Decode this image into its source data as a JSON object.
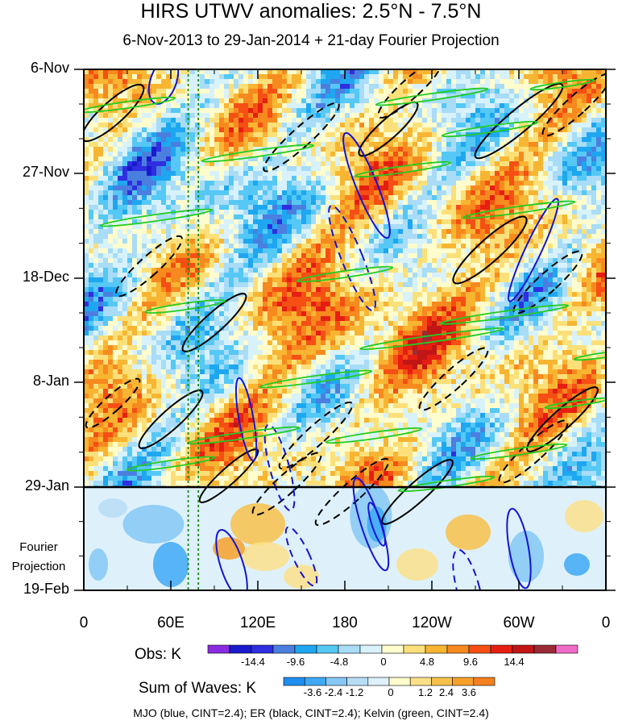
{
  "chart_data": {
    "type": "heatmap",
    "title": "HIRS UTWV anomalies: 2.5°N - 7.5°N",
    "subtitle": "6-Nov-2013 to 29-Jan-2014 + 21-day Fourier Projection",
    "y_tick_labels": [
      "6-Nov",
      "27-Nov",
      "18-Dec",
      "8-Jan",
      "29-Jan",
      "19-Feb"
    ],
    "x_tick_labels": [
      "0",
      "60E",
      "120E",
      "180",
      "120W",
      "60W",
      "0"
    ],
    "x_range": [
      0,
      360
    ],
    "projection_label": [
      "Fourier",
      "Projection"
    ],
    "projection_start": "29-Jan",
    "reference_longitudes": [
      72,
      79
    ],
    "obs_legend": {
      "title": "Obs: K",
      "tick_labels": [
        "-14.4",
        "-9.6",
        "-4.8",
        "0",
        "4.8",
        "9.6",
        "14.4"
      ],
      "colors": [
        "#8a2be2",
        "#1a1acd",
        "#2f2fe0",
        "#4a7fe0",
        "#1ea7f0",
        "#55c8f5",
        "#a8dcf7",
        "#d8f2fb",
        "#fffccd",
        "#fbe07a",
        "#f7b532",
        "#f78a1e",
        "#f54f14",
        "#e61e12",
        "#c01616",
        "#9b2b36",
        "#f06bc8"
      ]
    },
    "waves_legend": {
      "title": "Sum of Waves: K",
      "tick_labels": [
        "-3.6",
        "-2.4",
        "-1.2",
        "0",
        "1.2",
        "2.4",
        "3.6"
      ],
      "colors": [
        "#1e8ef0",
        "#3fa9f5",
        "#85c8f5",
        "#b7ddf5",
        "#def1fb",
        "#fffccd",
        "#fbe08a",
        "#f8c14a",
        "#f7a02a",
        "#f58020"
      ]
    },
    "wave_contours": [
      {
        "name": "MJO",
        "color": "#1414d2",
        "cint": 2.4
      },
      {
        "name": "ER",
        "color": "#000000",
        "cint": 2.4
      },
      {
        "name": "Kelvin",
        "color": "#22cc22",
        "cint": 2.4
      }
    ],
    "footer": "MJO (blue, CINT=2.4); ER (black, CINT=2.4); Kelvin (green, CINT=2.4)"
  }
}
